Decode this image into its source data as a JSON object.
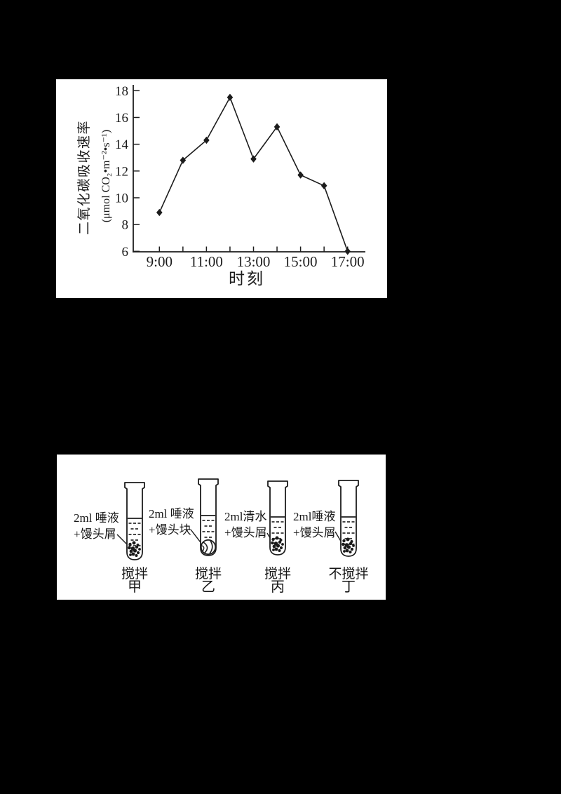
{
  "page": {
    "background": "#000000",
    "panel_background": "#ffffff",
    "ink": "#1c1c1c"
  },
  "chart_data": {
    "type": "line",
    "title": "",
    "x": [
      9,
      10,
      11,
      12,
      13,
      14,
      15,
      16,
      17
    ],
    "values": [
      8.9,
      12.8,
      14.3,
      17.5,
      12.9,
      15.3,
      11.7,
      10.9,
      6.0
    ],
    "x_tick_hours": [
      9,
      11,
      13,
      15,
      17
    ],
    "x_tick_labels": [
      "9:00",
      "11:00",
      "13:00",
      "15:00",
      "17:00"
    ],
    "yticks": [
      18,
      16,
      14,
      12,
      10,
      8,
      6
    ],
    "ylim": [
      6,
      18
    ],
    "xlim_hours": [
      9,
      17
    ],
    "xlabel": "时刻",
    "ylabel": "二氧化碳吸收速率",
    "ylabel_units": "(μmol CO₂•m⁻²•s⁻¹)",
    "marker": "diamond",
    "grid": false,
    "legend": "none",
    "line_color": "#1c1c1c"
  },
  "experiment": {
    "tubes": [
      {
        "name": "甲",
        "annotation_line1": "2ml 唾液",
        "annotation_line2": "+馒头屑",
        "stir_label": "搅拌",
        "content": "crumbs"
      },
      {
        "name": "乙",
        "annotation_line1": "2ml 唾液",
        "annotation_line2": "+馒头块",
        "stir_label": "搅拌",
        "content": "chunk"
      },
      {
        "name": "丙",
        "annotation_line1": "2ml清水",
        "annotation_line2": "+馒头屑",
        "stir_label": "搅拌",
        "content": "crumbs"
      },
      {
        "name": "丁",
        "annotation_line1": "2ml唾液",
        "annotation_line2": "+馒头屑",
        "stir_label": "不搅拌",
        "content": "crumbs"
      }
    ]
  }
}
